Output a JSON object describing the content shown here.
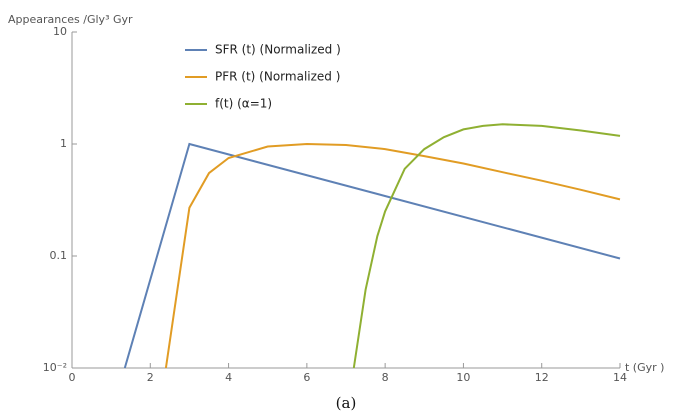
{
  "chart_data": {
    "type": "line",
    "y_label": "Appearances /Gly³ Gyr",
    "x_label": "t (Gyr )",
    "caption": "(a)",
    "log_y": true,
    "xlim": [
      0,
      14
    ],
    "xticks": [
      0,
      2,
      4,
      6,
      8,
      10,
      12,
      14
    ],
    "ylim": [
      0.01,
      10
    ],
    "yticks": [
      {
        "value": 0.01,
        "label": "10⁻²"
      },
      0.1,
      1,
      10
    ],
    "legend": "top-left",
    "series": [
      {
        "name": "SFR (t) (Normalized )",
        "color": "#5e81b5",
        "x": [
          1.35,
          3,
          14
        ],
        "values": [
          0.01,
          1,
          0.095
        ]
      },
      {
        "name": "PFR (t) (Normalized )",
        "color": "#e19c24",
        "x": [
          2.4,
          3,
          3.5,
          4,
          5,
          6,
          7,
          8,
          9,
          10,
          11,
          12,
          13,
          14
        ],
        "values": [
          0.01,
          0.27,
          0.55,
          0.75,
          0.95,
          1.0,
          0.98,
          0.9,
          0.78,
          0.67,
          0.56,
          0.47,
          0.39,
          0.32
        ]
      },
      {
        "name": "f(t) (α=1)",
        "color": "#8fb032",
        "x": [
          7.2,
          7.5,
          7.8,
          8,
          8.5,
          9,
          9.5,
          10,
          10.5,
          11,
          12,
          13,
          14
        ],
        "values": [
          0.01,
          0.05,
          0.15,
          0.25,
          0.6,
          0.9,
          1.15,
          1.35,
          1.45,
          1.5,
          1.45,
          1.32,
          1.18
        ]
      }
    ]
  }
}
